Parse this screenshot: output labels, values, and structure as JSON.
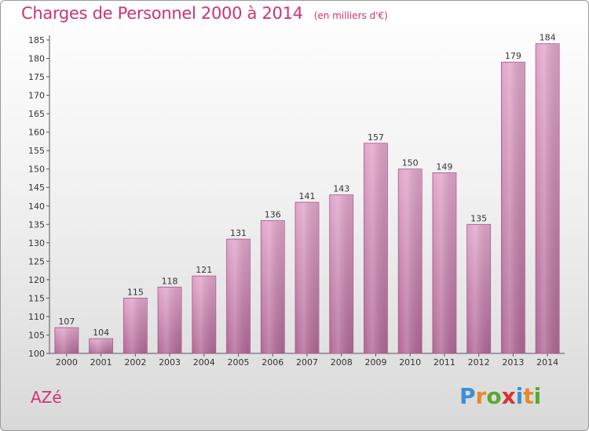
{
  "title": "Charges de Personnel 2000 à 2014",
  "unit_note": "(en milliers d'€)",
  "commune": "AZé",
  "logo": {
    "letters": [
      "P",
      "r",
      "o",
      "x",
      "i",
      "t",
      "i"
    ],
    "colors": [
      "#3b8fd6",
      "#e8892a",
      "#5aa832",
      "#d9322f",
      "#3b8fd6",
      "#e8892a",
      "#5aa832"
    ]
  },
  "colors": {
    "bar_top": "#e2a7cb",
    "bar_bottom": "#b26a98",
    "bar_stroke": "#a05a88",
    "title": "#cc3377"
  },
  "chart_data": {
    "type": "bar",
    "categories": [
      "2000",
      "2001",
      "2002",
      "2003",
      "2004",
      "2005",
      "2006",
      "2007",
      "2008",
      "2009",
      "2010",
      "2011",
      "2012",
      "2013",
      "2014"
    ],
    "values": [
      107,
      104,
      115,
      118,
      121,
      131,
      136,
      141,
      143,
      157,
      150,
      149,
      135,
      179,
      184
    ],
    "ylim": [
      100,
      185
    ],
    "yticks": [
      100,
      105,
      110,
      115,
      120,
      125,
      130,
      135,
      140,
      145,
      150,
      155,
      160,
      165,
      170,
      175,
      180,
      185
    ],
    "grid": false,
    "title": "Charges de Personnel 2000 à 2014",
    "xlabel": "",
    "ylabel": ""
  }
}
